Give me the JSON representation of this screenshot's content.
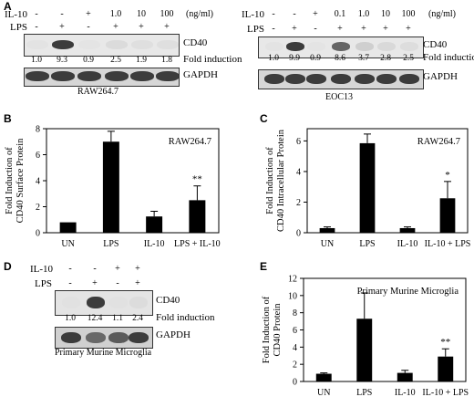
{
  "panel_labels": {
    "a": "A",
    "b": "B",
    "c": "C",
    "d": "D",
    "e": "E"
  },
  "blot_a1": {
    "row1_label": "IL-10",
    "row1_marks": [
      "-",
      "-",
      "+",
      "1.0",
      "10",
      "100"
    ],
    "unit": "(ng/ml)",
    "row2_label": "LPS",
    "row2_marks": [
      "-",
      "+",
      "-",
      "+",
      "+",
      "+"
    ],
    "band1_label": "CD40",
    "fold_values": [
      "1.0",
      "9.3",
      "0.9",
      "2.5",
      "1.9",
      "1.8"
    ],
    "fold_label": "Fold induction",
    "band2_label": "GAPDH",
    "cell_line": "RAW264.7"
  },
  "blot_a2": {
    "row1_label": "IL-10",
    "row1_marks": [
      "-",
      "-",
      "+",
      "0.1",
      "1.0",
      "10",
      "100"
    ],
    "unit": "(ng/ml)",
    "row2_label": "LPS",
    "row2_marks": [
      "-",
      "+",
      "-",
      "+",
      "+",
      "+",
      "+"
    ],
    "band1_label": "CD40",
    "fold_values": [
      "1.0",
      "9.9",
      "0.9",
      "8.6",
      "3.7",
      "2.8",
      "2.5"
    ],
    "fold_label": "Fold induction",
    "band2_label": "GAPDH",
    "cell_line": "EOC13"
  },
  "blot_d": {
    "row1_label": "IL-10",
    "row1_marks": [
      "-",
      "-",
      "+",
      "+"
    ],
    "row2_label": "LPS",
    "row2_marks": [
      "-",
      "+",
      "-",
      "+"
    ],
    "band1_label": "CD40",
    "fold_values": [
      "1.0",
      "12.4",
      "1.1",
      "2.4"
    ],
    "fold_label": "Fold induction",
    "band2_label": "GAPDH",
    "cell_type": "Primary Murine Microglia"
  },
  "chart_data": [
    {
      "panel": "B",
      "type": "bar",
      "inset_label": "RAW264.7",
      "ylabel": "Fold Induction of CD40 Surface Protein",
      "categories": [
        "UN",
        "LPS",
        "IL-10",
        "LPS + IL-10"
      ],
      "values": [
        0.8,
        7.0,
        1.25,
        2.5
      ],
      "errors": [
        0,
        0.8,
        0.4,
        1.1
      ],
      "significance": [
        "",
        "",
        "",
        "**"
      ],
      "yticks": [
        0,
        2,
        4,
        6,
        8
      ],
      "ylim": [
        0,
        8
      ]
    },
    {
      "panel": "C",
      "type": "bar",
      "inset_label": "RAW264.7",
      "ylabel": "Fold Induction of CD40 Intracellular Protein",
      "categories": [
        "UN",
        "LPS",
        "IL-10",
        "IL-10 + LPS"
      ],
      "values": [
        0.3,
        5.85,
        0.3,
        2.25
      ],
      "errors": [
        0.08,
        0.6,
        0.08,
        1.1
      ],
      "significance": [
        "",
        "",
        "",
        "*"
      ],
      "yticks": [
        0,
        2,
        4,
        6
      ],
      "ylim": [
        0,
        6.8
      ]
    },
    {
      "panel": "E",
      "type": "bar",
      "inset_label": "Primary Murine Microglia",
      "ylabel": "Fold Induction of CD40 Protein",
      "categories": [
        "UN",
        "LPS",
        "IL-10",
        "IL-10 + LPS"
      ],
      "values": [
        0.9,
        7.3,
        1.0,
        2.9
      ],
      "errors": [
        0.1,
        3.0,
        0.3,
        0.9
      ],
      "significance": [
        "",
        "",
        "",
        "**"
      ],
      "yticks": [
        0,
        2,
        4,
        6,
        8,
        10,
        12
      ],
      "ylim": [
        0,
        12
      ]
    }
  ]
}
